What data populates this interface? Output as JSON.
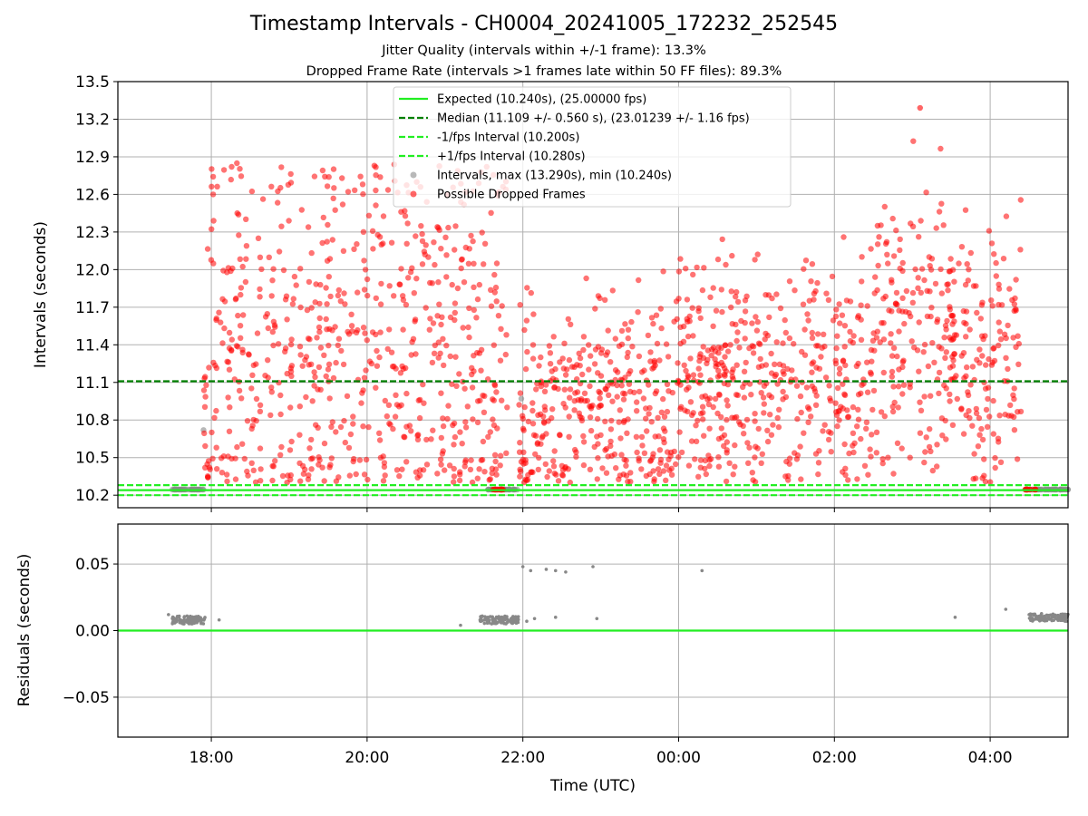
{
  "header": {
    "title": "Timestamp Intervals - CH0004_20241005_172232_252545",
    "subtitle1": "Jitter Quality (intervals within +/-1 frame): 13.3%",
    "subtitle2": "Dropped Frame Rate (intervals >1 frames late within 50 FF files): 89.3%"
  },
  "colors": {
    "expected": "#22ee22",
    "median": "#008000",
    "fps_band": "#22ee22",
    "intervals": "#888888",
    "dropped": "#ff0000",
    "grid": "#b0b0b0"
  },
  "chart_data": [
    {
      "type": "scatter",
      "panel": "top",
      "ylabel": "Intervals (seconds)",
      "ylim": [
        10.1,
        13.5
      ],
      "xlim_hours": [
        16.8,
        29.0
      ],
      "yticks": [
        10.2,
        10.5,
        10.8,
        11.1,
        11.4,
        11.7,
        12.0,
        12.3,
        12.6,
        12.9,
        13.2,
        13.5
      ],
      "ytick_labels": [
        "10.2",
        "10.5",
        "10.8",
        "11.1",
        "11.4",
        "11.7",
        "12.0",
        "12.3",
        "12.6",
        "12.9",
        "13.2",
        "13.5"
      ],
      "grid": true,
      "legend_position": "top-center",
      "legend": [
        {
          "label": "Expected (10.240s), (25.00000 fps)",
          "style": "solid",
          "color": "#22ee22"
        },
        {
          "label": "Median (11.109 +/- 0.560 s), (23.01239 +/- 1.16 fps)",
          "style": "dashed",
          "color": "#008000"
        },
        {
          "label": "-1/fps Interval (10.200s)",
          "style": "dashed",
          "color": "#22ee22"
        },
        {
          "label": "+1/fps Interval (10.280s)",
          "style": "dashed",
          "color": "#22ee22"
        },
        {
          "label": "Intervals, max (13.290s), min (10.240s)",
          "style": "marker",
          "color": "#888888"
        },
        {
          "label": "Possible Dropped Frames",
          "style": "marker",
          "color": "#ff0000"
        }
      ],
      "hlines": [
        {
          "name": "expected",
          "y": 10.24
        },
        {
          "name": "median",
          "y": 11.109
        },
        {
          "name": "minus_fps",
          "y": 10.2
        },
        {
          "name": "plus_fps",
          "y": 10.28
        }
      ],
      "max_interval": 13.29,
      "min_interval": 10.24,
      "dropped_segments_approx": [
        {
          "x_start": 17.9,
          "x_end": 21.8,
          "y_center": 11.35,
          "y_spread": 0.85,
          "y_max": 12.85
        },
        {
          "x_start": 21.95,
          "x_end": 23.95,
          "y_center": 10.9,
          "y_spread": 0.45,
          "y_max": 12.0
        },
        {
          "x_start": 23.95,
          "x_end": 26.5,
          "y_center": 11.15,
          "y_spread": 0.45,
          "y_max": 12.4
        },
        {
          "x_start": 26.5,
          "x_end": 27.5,
          "y_center": 11.45,
          "y_spread": 0.6,
          "y_max": 13.29
        },
        {
          "x_start": 27.5,
          "x_end": 28.4,
          "y_center": 11.3,
          "y_spread": 0.55,
          "y_max": 12.65
        }
      ]
    },
    {
      "type": "scatter",
      "panel": "bottom",
      "ylabel": "Residuals (seconds)",
      "xlabel": "Time (UTC)",
      "ylim": [
        -0.08,
        0.08
      ],
      "yticks": [
        -0.05,
        0.0,
        0.05
      ],
      "ytick_labels": [
        "−0.05",
        "0.00",
        "0.05"
      ],
      "xticks_hours": [
        18,
        20,
        22,
        24,
        26,
        28
      ],
      "xtick_labels": [
        "18:00",
        "20:00",
        "22:00",
        "00:00",
        "02:00",
        "04:00"
      ],
      "zero_line": 0.0,
      "points": [
        {
          "x": 17.45,
          "y": 0.012
        },
        {
          "x": 17.5,
          "y": 0.009
        },
        {
          "x": 17.55,
          "y": 0.008
        },
        {
          "x": 17.6,
          "y": 0.008
        },
        {
          "x": 17.65,
          "y": 0.008
        },
        {
          "x": 17.7,
          "y": 0.008
        },
        {
          "x": 17.75,
          "y": 0.008
        },
        {
          "x": 17.8,
          "y": 0.008
        },
        {
          "x": 17.88,
          "y": 0.008
        },
        {
          "x": 18.1,
          "y": 0.008
        },
        {
          "x": 21.2,
          "y": 0.004
        },
        {
          "x": 21.45,
          "y": 0.008
        },
        {
          "x": 21.55,
          "y": 0.01
        },
        {
          "x": 21.65,
          "y": 0.009
        },
        {
          "x": 21.75,
          "y": 0.008
        },
        {
          "x": 21.85,
          "y": 0.009
        },
        {
          "x": 21.93,
          "y": 0.008
        },
        {
          "x": 22.0,
          "y": 0.048
        },
        {
          "x": 22.1,
          "y": 0.045
        },
        {
          "x": 22.05,
          "y": 0.007
        },
        {
          "x": 22.15,
          "y": 0.009
        },
        {
          "x": 22.3,
          "y": 0.046
        },
        {
          "x": 22.42,
          "y": 0.045
        },
        {
          "x": 22.55,
          "y": 0.044
        },
        {
          "x": 22.42,
          "y": 0.01
        },
        {
          "x": 22.9,
          "y": 0.048
        },
        {
          "x": 22.95,
          "y": 0.009
        },
        {
          "x": 24.3,
          "y": 0.045
        },
        {
          "x": 27.55,
          "y": 0.01
        },
        {
          "x": 28.2,
          "y": 0.016
        },
        {
          "x": 28.5,
          "y": 0.012
        },
        {
          "x": 28.6,
          "y": 0.01
        },
        {
          "x": 28.7,
          "y": 0.008
        },
        {
          "x": 28.8,
          "y": 0.012
        },
        {
          "x": 28.9,
          "y": 0.009
        },
        {
          "x": 28.95,
          "y": 0.01
        }
      ]
    }
  ]
}
